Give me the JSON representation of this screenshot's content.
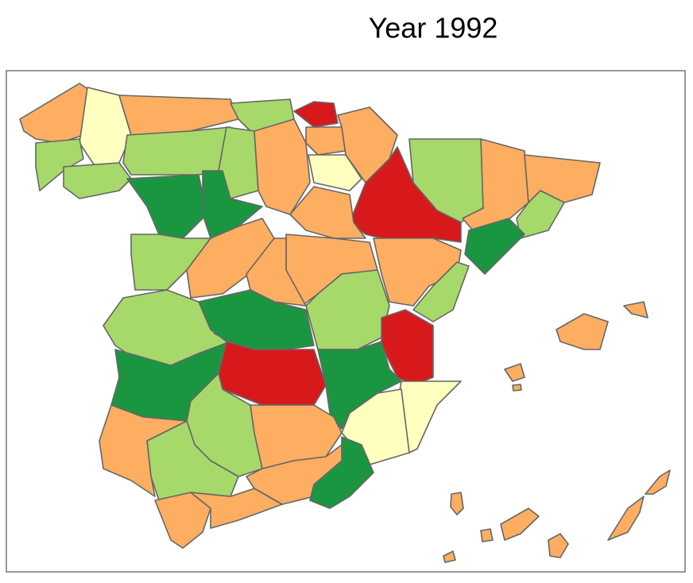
{
  "title": "Year 1992"
}
